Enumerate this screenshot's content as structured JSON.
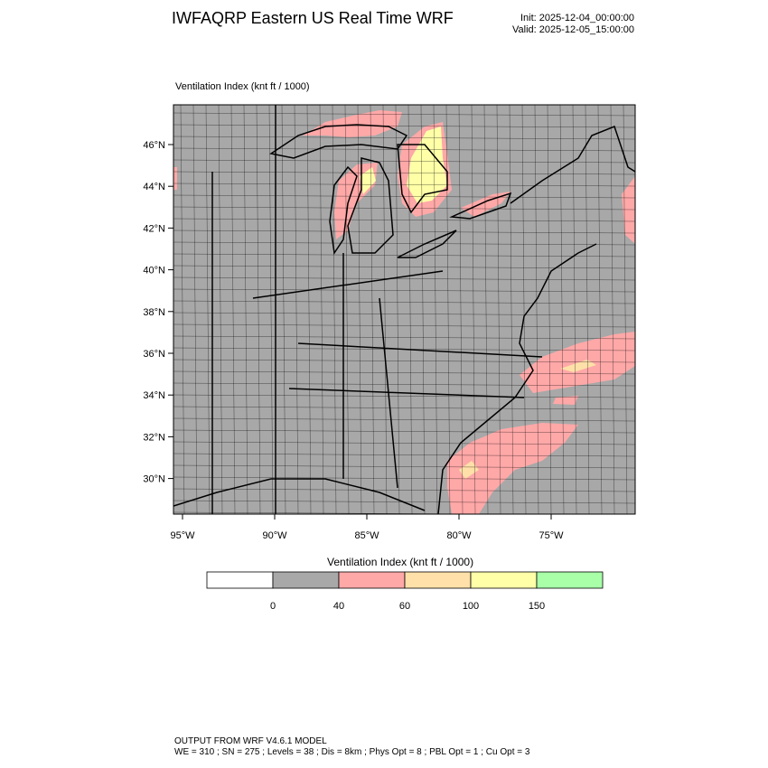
{
  "header": {
    "title": "IWFAQRP Eastern US Real Time WRF",
    "init": "Init: 2025-12-04_00:00:00",
    "valid": "Valid: 2025-12-05_15:00:00"
  },
  "map": {
    "title": "Ventilation Index   (knt ft / 1000)",
    "background_color": "#a8a8a8",
    "lat_labels": [
      "46°N",
      "44°N",
      "42°N",
      "40°N",
      "38°N",
      "36°N",
      "34°N",
      "32°N",
      "30°N"
    ],
    "lon_labels": [
      "95°W",
      "90°W",
      "85°W",
      "80°W",
      "75°W"
    ]
  },
  "colorbar": {
    "title": "Ventilation Index  (knt ft / 1000)",
    "colors": [
      "#ffffff",
      "#a8a8a8",
      "#ffa8a8",
      "#ffe0a8",
      "#ffffa8",
      "#a8ffa8"
    ],
    "labels": [
      "0",
      "40",
      "60",
      "100",
      "150"
    ]
  },
  "footer": {
    "line1": "OUTPUT FROM WRF V4.6.1 MODEL",
    "line2": "WE = 310 ; SN = 275 ; Levels = 38 ; Dis = 8km ; Phys Opt = 8 ; PBL Opt = 1 ; Cu Opt = 3"
  }
}
